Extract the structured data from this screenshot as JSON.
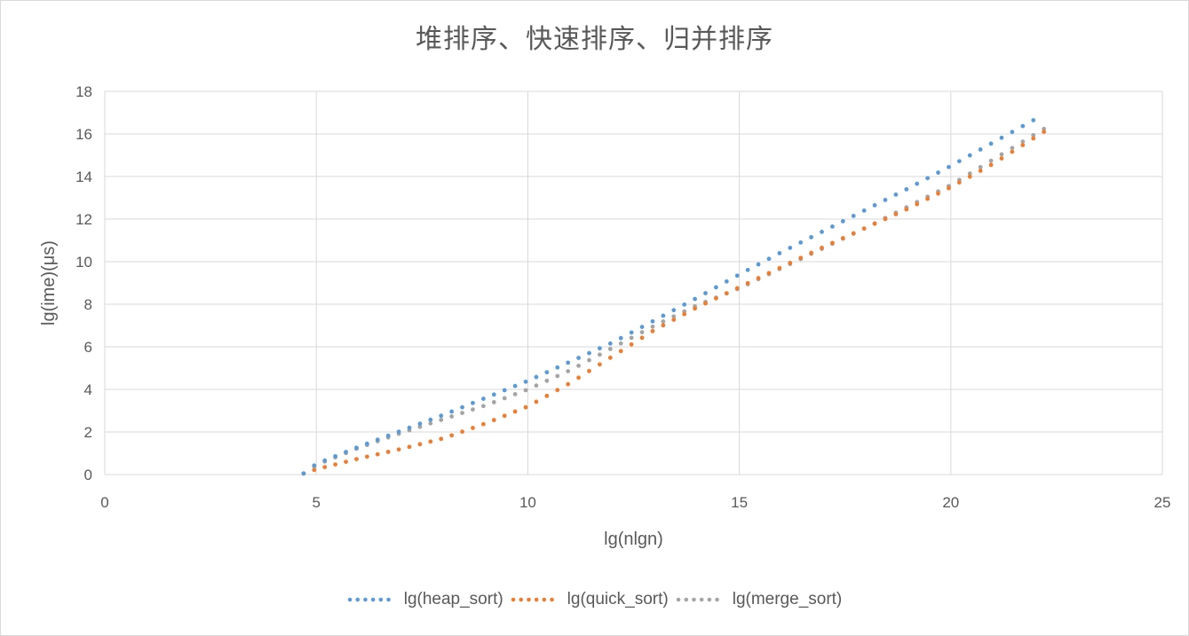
{
  "chart_data": {
    "type": "scatter",
    "title": "堆排序、快速排序、归并排序",
    "xlabel": "lg(nlgn)",
    "ylabel": "lg(ime)(μs)",
    "xlim": [
      0,
      25
    ],
    "ylim": [
      0,
      18
    ],
    "x_ticks": [
      0,
      5,
      10,
      15,
      20,
      25
    ],
    "y_ticks": [
      0,
      2,
      4,
      6,
      8,
      10,
      12,
      14,
      16,
      18
    ],
    "grid": true,
    "legend_position": "bottom",
    "series": [
      {
        "name": "lg(heap_sort)",
        "color": "#5b9bd5",
        "x_start": 4.7,
        "x_end": 22.05,
        "x_step": 0.25,
        "points": [
          [
            4.7,
            0.05
          ],
          [
            5,
            0.5
          ],
          [
            6,
            1.3
          ],
          [
            7,
            2.05
          ],
          [
            8,
            2.8
          ],
          [
            9,
            3.6
          ],
          [
            10,
            4.4
          ],
          [
            11,
            5.3
          ],
          [
            12,
            6.2
          ],
          [
            13,
            7.25
          ],
          [
            14,
            8.3
          ],
          [
            15,
            9.4
          ],
          [
            16,
            10.45
          ],
          [
            17,
            11.45
          ],
          [
            18,
            12.45
          ],
          [
            19,
            13.45
          ],
          [
            20,
            14.5
          ],
          [
            21,
            15.6
          ],
          [
            22,
            16.7
          ]
        ]
      },
      {
        "name": "lg(quick_sort)",
        "color": "#ed7d31",
        "x_start": 4.7,
        "x_end": 22.2,
        "x_step": 0.25,
        "points": [
          [
            4.7,
            0.05
          ],
          [
            5,
            0.25
          ],
          [
            6,
            0.75
          ],
          [
            7,
            1.2
          ],
          [
            8,
            1.7
          ],
          [
            9,
            2.4
          ],
          [
            10,
            3.2
          ],
          [
            11,
            4.3
          ],
          [
            12,
            5.55
          ],
          [
            13,
            6.8
          ],
          [
            14,
            7.85
          ],
          [
            15,
            8.8
          ],
          [
            16,
            9.75
          ],
          [
            17,
            10.7
          ],
          [
            18,
            11.6
          ],
          [
            19,
            12.5
          ],
          [
            20,
            13.5
          ],
          [
            21,
            14.6
          ],
          [
            22.2,
            16.1
          ]
        ]
      },
      {
        "name": "lg(merge_sort)",
        "color": "#a5a5a5",
        "x_start": 4.7,
        "x_end": 22.25,
        "x_step": 0.25,
        "points": [
          [
            4.7,
            0.05
          ],
          [
            5,
            0.45
          ],
          [
            6,
            1.25
          ],
          [
            7,
            1.95
          ],
          [
            8,
            2.6
          ],
          [
            9,
            3.25
          ],
          [
            10,
            4.0
          ],
          [
            11,
            4.9
          ],
          [
            12,
            5.95
          ],
          [
            13,
            7.0
          ],
          [
            14,
            7.95
          ],
          [
            15,
            8.75
          ],
          [
            16,
            9.7
          ],
          [
            17,
            10.65
          ],
          [
            18,
            11.6
          ],
          [
            19,
            12.6
          ],
          [
            20,
            13.6
          ],
          [
            21,
            14.8
          ],
          [
            22.25,
            16.3
          ]
        ]
      }
    ]
  }
}
